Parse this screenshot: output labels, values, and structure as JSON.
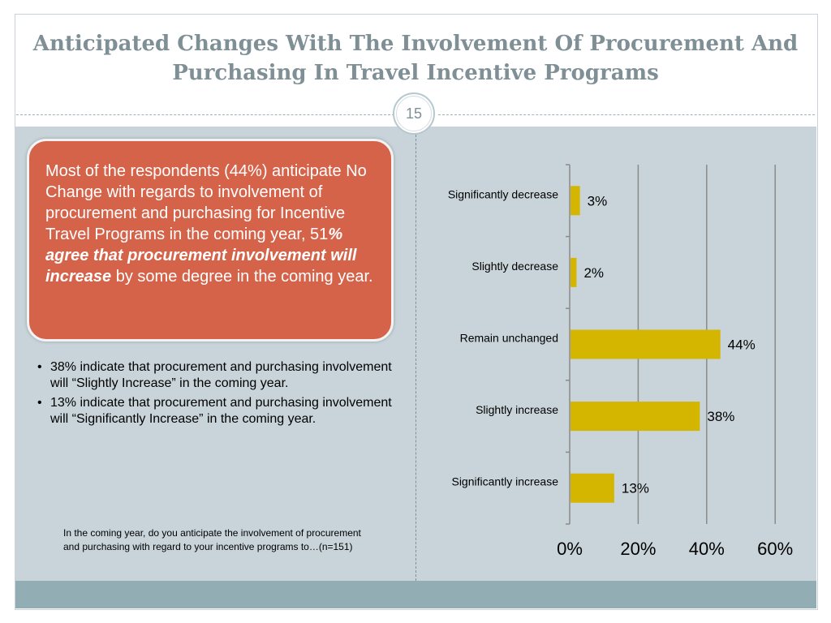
{
  "slide": {
    "title": "Anticipated Changes With The Involvement Of Procurement And Purchasing In Travel Incentive Programs",
    "page_number": "15"
  },
  "callout": {
    "text_before": "Most of the respondents (44%) anticipate No Change with regards to involvement of procurement and purchasing for Incentive Travel Programs in the coming year, 51",
    "text_emphasis": "% agree that procurement involvement will increase",
    "text_after": " by some degree in the coming year."
  },
  "bullets": [
    "38% indicate that procurement and purchasing involvement will “Slightly Increase” in the coming year.",
    "13% indicate that procurement and purchasing involvement will “Significantly Increase” in the coming year."
  ],
  "question": "In the coming year, do you anticipate the involvement of procurement and purchasing with regard to your incentive programs to…(n=151)",
  "colors": {
    "bar": "#d4b500",
    "callout": "#d5634a",
    "title": "#7f8f96",
    "content_background": "#c8d4da",
    "footer_band": "#92adb3"
  },
  "chart_data": {
    "type": "bar",
    "orientation": "horizontal",
    "categories": [
      "Significantly decrease",
      "Slightly decrease",
      "Remain unchanged",
      "Slightly increase",
      "Significantly increase"
    ],
    "values": [
      3,
      2,
      44,
      38,
      13
    ],
    "data_labels": [
      "3%",
      "2%",
      "44%",
      "38%",
      "13%"
    ],
    "xlim": [
      0,
      60
    ],
    "x_ticks": [
      0,
      20,
      40,
      60
    ],
    "x_tick_labels": [
      "0%",
      "20%",
      "40%",
      "60%"
    ],
    "grid": true,
    "legend": "none",
    "title": "",
    "xlabel": "",
    "ylabel": ""
  }
}
